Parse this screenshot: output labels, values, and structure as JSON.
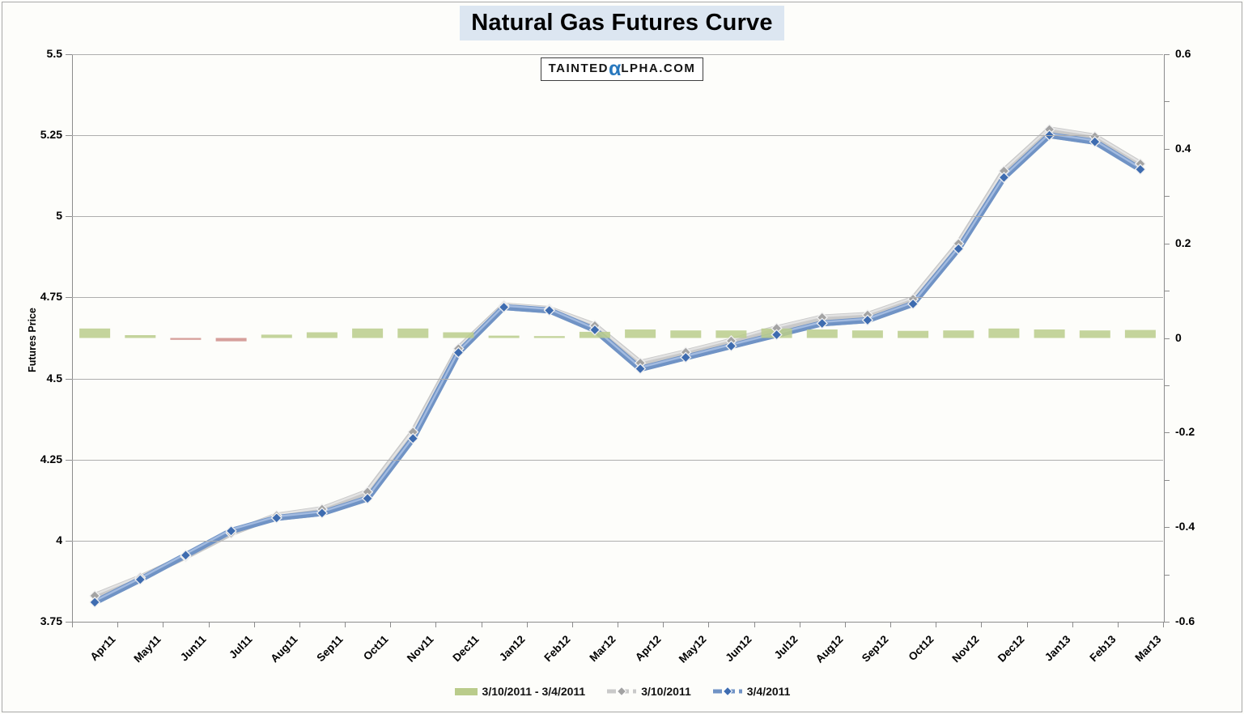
{
  "header": {
    "title": "Natural Gas Futures Curve",
    "title_highlight_color": "#dce6f1",
    "logo": {
      "prefix": "TAINTED",
      "alpha_glyph": "α",
      "suffix": "LPHA.COM",
      "alpha_color": "#2878be"
    }
  },
  "legend": {
    "items": [
      {
        "label": "3/10/2011 - 3/4/2011",
        "swatch": "green-bar"
      },
      {
        "label": "3/10/2011",
        "swatch": "gray-line-diamond"
      },
      {
        "label": "3/4/2011",
        "swatch": "blue-line-diamond"
      }
    ]
  },
  "chart_data": {
    "type": "combo",
    "title": "Natural Gas Futures Curve",
    "categories": [
      "Apr11",
      "May11",
      "Jun11",
      "Jul11",
      "Aug11",
      "Sep11",
      "Oct11",
      "Nov11",
      "Dec11",
      "Jan12",
      "Feb12",
      "Mar12",
      "Apr12",
      "May12",
      "Jun12",
      "Jul12",
      "Aug12",
      "Sep12",
      "Oct12",
      "Nov12",
      "Dec12",
      "Jan13",
      "Feb13",
      "Mar13"
    ],
    "left_axis": {
      "label": "Futures Price",
      "min": 3.75,
      "max": 5.5,
      "tick_step": 0.25,
      "tick_labels": [
        "5.5",
        "5.25",
        "5",
        "4.75",
        "4.5",
        "4.25",
        "4",
        "3.75"
      ]
    },
    "right_axis": {
      "min": -0.6,
      "max": 0.6,
      "tick_step": 0.2,
      "minor_tick_step": 0.1,
      "tick_labels": [
        "0.6",
        "0.4",
        "0.2",
        "0",
        "-0.2",
        "-0.4",
        "-0.6"
      ]
    },
    "grid": true,
    "legend_position": "bottom",
    "series": [
      {
        "name": "3/10/2011 - 3/4/2011",
        "type": "bar",
        "axis": "right",
        "values": [
          0.02,
          0.006,
          -0.004,
          -0.007,
          0.007,
          0.012,
          0.02,
          0.02,
          0.012,
          0.005,
          0.004,
          0.013,
          0.018,
          0.016,
          0.016,
          0.02,
          0.018,
          0.016,
          0.015,
          0.016,
          0.02,
          0.018,
          0.016,
          0.017
        ]
      },
      {
        "name": "3/10/2011",
        "type": "line",
        "axis": "left",
        "marker": "diamond",
        "values": [
          3.83,
          3.886,
          3.951,
          4.023,
          4.077,
          4.097,
          4.15,
          4.335,
          4.592,
          4.725,
          4.714,
          4.663,
          4.548,
          4.581,
          4.616,
          4.655,
          4.688,
          4.696,
          4.745,
          4.916,
          5.14,
          5.268,
          5.246,
          5.162
        ]
      },
      {
        "name": "3/4/2011",
        "type": "line",
        "axis": "left",
        "marker": "diamond",
        "values": [
          3.81,
          3.88,
          3.955,
          4.03,
          4.07,
          4.085,
          4.13,
          4.315,
          4.58,
          4.72,
          4.71,
          4.65,
          4.53,
          4.565,
          4.6,
          4.635,
          4.67,
          4.68,
          4.73,
          4.9,
          5.12,
          5.25,
          5.23,
          5.145
        ]
      }
    ],
    "colors": {
      "diff_positive": "#bacc8b",
      "diff_negative": "#cf8e8a",
      "line_3_10": "#c9c9c9",
      "line_3_10_highlight": "#e6e6e6",
      "line_3_10_shadow": "#9f9f9f",
      "marker_3_10": "#a3a3a3",
      "line_3_4": "#7093c5",
      "line_3_4_highlight": "#a8c0e2",
      "line_3_4_shadow": "#5c7fae",
      "marker_3_4": "#3e6cb0",
      "gridline": "#aeaeae",
      "axis": "#8c8c8c"
    }
  }
}
